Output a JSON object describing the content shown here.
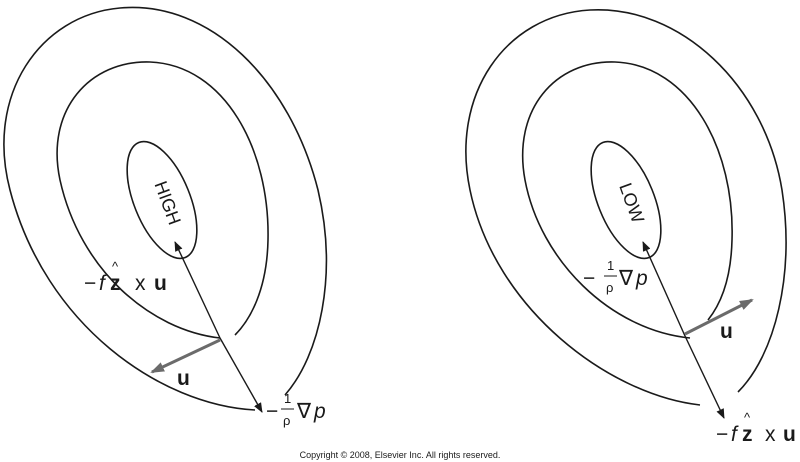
{
  "high": {
    "center_label": "HIGH",
    "coriolis": {
      "minus": "−",
      "f": "f",
      "z": "z",
      "hat": "^",
      "times": "x",
      "u": "u"
    },
    "pressure": {
      "minus": "−",
      "one": "1",
      "rho": "ρ",
      "nabla": "∇",
      "p": "p"
    },
    "velocity": {
      "u": "u"
    }
  },
  "low": {
    "center_label": "LOW",
    "coriolis": {
      "minus": "−",
      "f": "f",
      "z": "z",
      "hat": "^",
      "times": "x",
      "u": "u"
    },
    "pressure": {
      "minus": "−",
      "one": "1",
      "rho": "ρ",
      "nabla": "∇",
      "p": "p"
    },
    "velocity": {
      "u": "u"
    }
  },
  "copyright": "Copyright © 2008, Elsevier Inc. All rights reserved.",
  "colors": {
    "contour": "#1a1a1a",
    "pressure_arrow": "#1a1a1a",
    "velocity_arrow": "#6b6b6b",
    "background": "#ffffff"
  }
}
